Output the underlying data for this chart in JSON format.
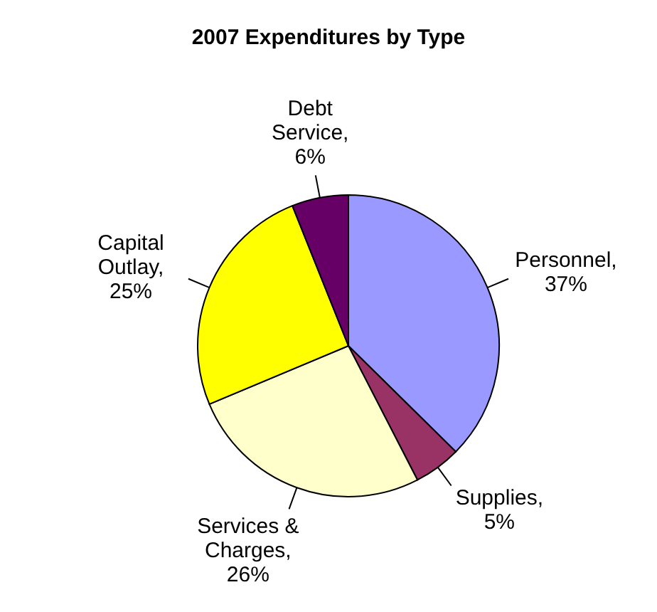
{
  "chart_data": {
    "type": "pie",
    "title": "2007 Expenditures by Type",
    "categories": [
      "Personnel",
      "Supplies",
      "Services & Charges",
      "Capital Outlay",
      "Debt Service"
    ],
    "values": [
      37,
      5,
      26,
      25,
      6
    ],
    "value_labels": [
      ", 37%",
      ", 5%",
      ", 26%",
      ", 25%",
      ", 6%"
    ],
    "colors": [
      "#9999ff",
      "#993366",
      "#ffffcc",
      "#ffff00",
      "#660066"
    ],
    "legend": false
  }
}
